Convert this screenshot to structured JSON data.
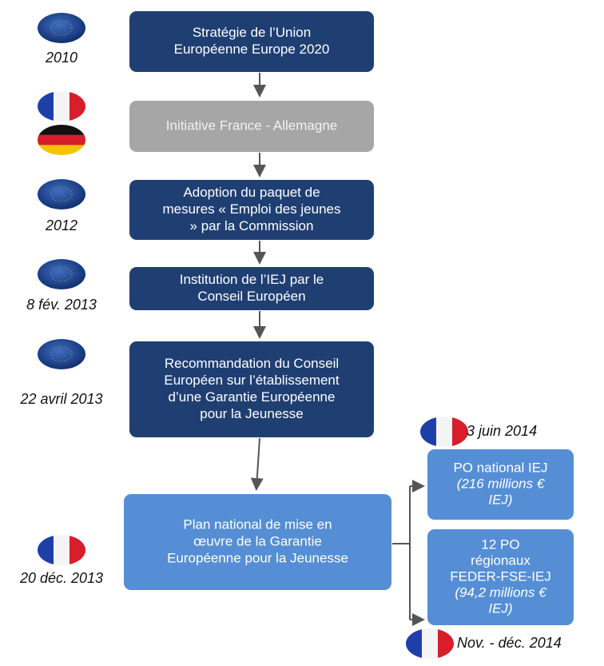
{
  "steps": [
    {
      "date": "2010",
      "lines": [
        "Stratégie de l’Union",
        "Européenne Europe 2020"
      ]
    },
    {
      "date": null,
      "lines": [
        "Initiative France - Allemagne"
      ]
    },
    {
      "date": "2012",
      "lines": [
        "Adoption du paquet de",
        "mesures « Emploi des jeunes",
        "» par la Commission"
      ]
    },
    {
      "date": "8 fév. 2013",
      "lines": [
        "Institution de l’IEJ par le",
        "Conseil Européen"
      ]
    },
    {
      "date": "22 avril 2013",
      "lines": [
        "Recommandation du Conseil",
        "Européen sur l’établissement",
        "d’une Garantie Européenne",
        "pour la Jeunesse"
      ]
    },
    {
      "date": "20 déc. 2013",
      "lines": [
        "Plan national de mise en",
        "œuvre de la Garantie",
        "Européenne pour la Jeunesse"
      ]
    }
  ],
  "outputs": [
    {
      "date": "3 juin 2014",
      "lines": [
        "PO national IEJ"
      ],
      "italic_lines": [
        "(216 millions €",
        "IEJ)"
      ]
    },
    {
      "date": "Nov. - déc. 2014",
      "lines": [
        "12 PO",
        "régionaux",
        "FEDER-FSE-IEJ"
      ],
      "italic_lines": [
        "(94,2 millions €",
        "IEJ)"
      ]
    }
  ]
}
